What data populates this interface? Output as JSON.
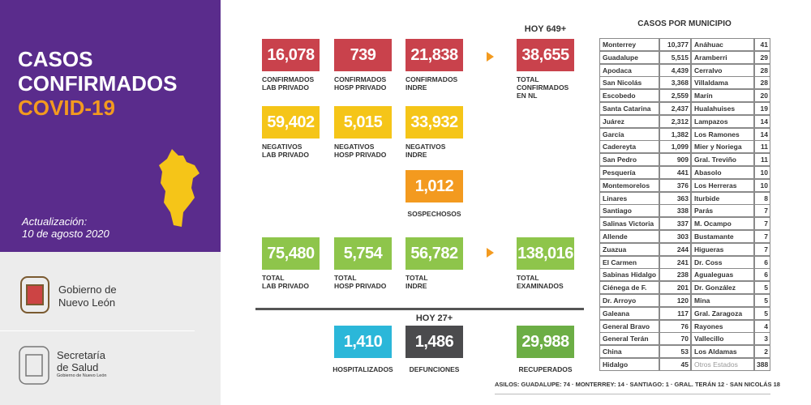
{
  "header": {
    "title_lines": [
      "CASOS",
      "CONFIRMADOS"
    ],
    "subtitle": "COVID-19",
    "update_label": "Actualización:",
    "update_date": "10 de agosto 2020"
  },
  "logos": [
    {
      "lines": [
        "Gobierno de",
        "Nuevo León"
      ]
    },
    {
      "lines": [
        "Secretaría",
        "de Salud"
      ],
      "small": "Gobierno de Nuevo León"
    }
  ],
  "today_confirmed": "HOY 649+",
  "today_deaths": "HOY 27+",
  "cards": [
    {
      "value": "16,078",
      "label": "CONFIRMADOS\nLAB PRIVADO",
      "color": "#c9424c"
    },
    {
      "value": "739",
      "label": "CONFIRMADOS\nHOSP PRIVADO",
      "color": "#c9424c"
    },
    {
      "value": "21,838",
      "label": "CONFIRMADOS\nINDRE",
      "color": "#c9424c"
    },
    {
      "value": "38,655",
      "label": "TOTAL\nCONFIRMADOS\nEN NL",
      "color": "#c9424c"
    },
    {
      "value": "59,402",
      "label": "NEGATIVOS\nLAB PRIVADO",
      "color": "#f5c518"
    },
    {
      "value": "5,015",
      "label": "NEGATIVOS\nHOSP PRIVADO",
      "color": "#f5c518"
    },
    {
      "value": "33,932",
      "label": "NEGATIVOS\nINDRE",
      "color": "#f5c518"
    },
    {
      "value": "1,012",
      "label": "SOSPECHOSOS",
      "color": "#f39a1f"
    },
    {
      "value": "75,480",
      "label": "TOTAL\nLAB PRIVADO",
      "color": "#8ec54b"
    },
    {
      "value": "5,754",
      "label": "TOTAL\nHOSP PRIVADO",
      "color": "#8ec54b"
    },
    {
      "value": "56,782",
      "label": "TOTAL\nINDRE",
      "color": "#8ec54b"
    },
    {
      "value": "138,016",
      "label": "TOTAL\nEXAMINADOS",
      "color": "#8ec54b"
    },
    {
      "value": "1,410",
      "label": "HOSPITALIZADOS",
      "color": "#2bb7d9"
    },
    {
      "value": "1,486",
      "label": "DEFUNCIONES",
      "color": "#4b4b4d"
    },
    {
      "value": "29,988",
      "label": "RECUPERADOS",
      "color": "#6cae45"
    }
  ],
  "table": {
    "title": "CASOS POR MUNICIPIO",
    "rows": [
      [
        "Monterrey",
        "10,377",
        "Anáhuac",
        "41"
      ],
      [
        "Guadalupe",
        "5,515",
        "Aramberri",
        "29"
      ],
      [
        "Apodaca",
        "4,439",
        "Cerralvo",
        "28"
      ],
      [
        "San Nicolás",
        "3,368",
        "Villaldama",
        "28"
      ],
      [
        "Escobedo",
        "2,559",
        "Marín",
        "20"
      ],
      [
        "Santa Catarina",
        "2,437",
        "Hualahuises",
        "19"
      ],
      [
        "Juárez",
        "2,312",
        "Lampazos",
        "14"
      ],
      [
        "García",
        "1,382",
        "Los Ramones",
        "14"
      ],
      [
        "Cadereyta",
        "1,099",
        "Mier y Noriega",
        "11"
      ],
      [
        "San Pedro",
        "909",
        "Gral. Treviño",
        "11"
      ],
      [
        "Pesquería",
        "441",
        "Abasolo",
        "10"
      ],
      [
        "Montemorelos",
        "376",
        "Los Herreras",
        "10"
      ],
      [
        "Linares",
        "363",
        "Iturbide",
        "8"
      ],
      [
        "Santiago",
        "338",
        "Parás",
        "7"
      ],
      [
        "Salinas Victoria",
        "337",
        "M. Ocampo",
        "7"
      ],
      [
        "Allende",
        "303",
        "Bustamante",
        "7"
      ],
      [
        "Zuazua",
        "244",
        "Higueras",
        "7"
      ],
      [
        "El Carmen",
        "241",
        "Dr. Coss",
        "6"
      ],
      [
        "Sabinas Hidalgo",
        "238",
        "Agualeguas",
        "6"
      ],
      [
        "Ciénega de F.",
        "201",
        "Dr. González",
        "5"
      ],
      [
        "Dr. Arroyo",
        "120",
        "Mina",
        "5"
      ],
      [
        "Galeana",
        "117",
        "Gral. Zaragoza",
        "5"
      ],
      [
        "General Bravo",
        "76",
        "Rayones",
        "4"
      ],
      [
        "General Terán",
        "70",
        "Vallecillo",
        "3"
      ],
      [
        "China",
        "53",
        "Los Aldamas",
        "2"
      ],
      [
        "Hidalgo",
        "45",
        "Otros Estados",
        "388"
      ]
    ]
  },
  "footer": "ASILOS: GUADALUPE: 74 · MONTERREY: 14 · SANTIAGO: 1 · GRAL. TERÁN 12 · SAN NICOLÁS 18"
}
